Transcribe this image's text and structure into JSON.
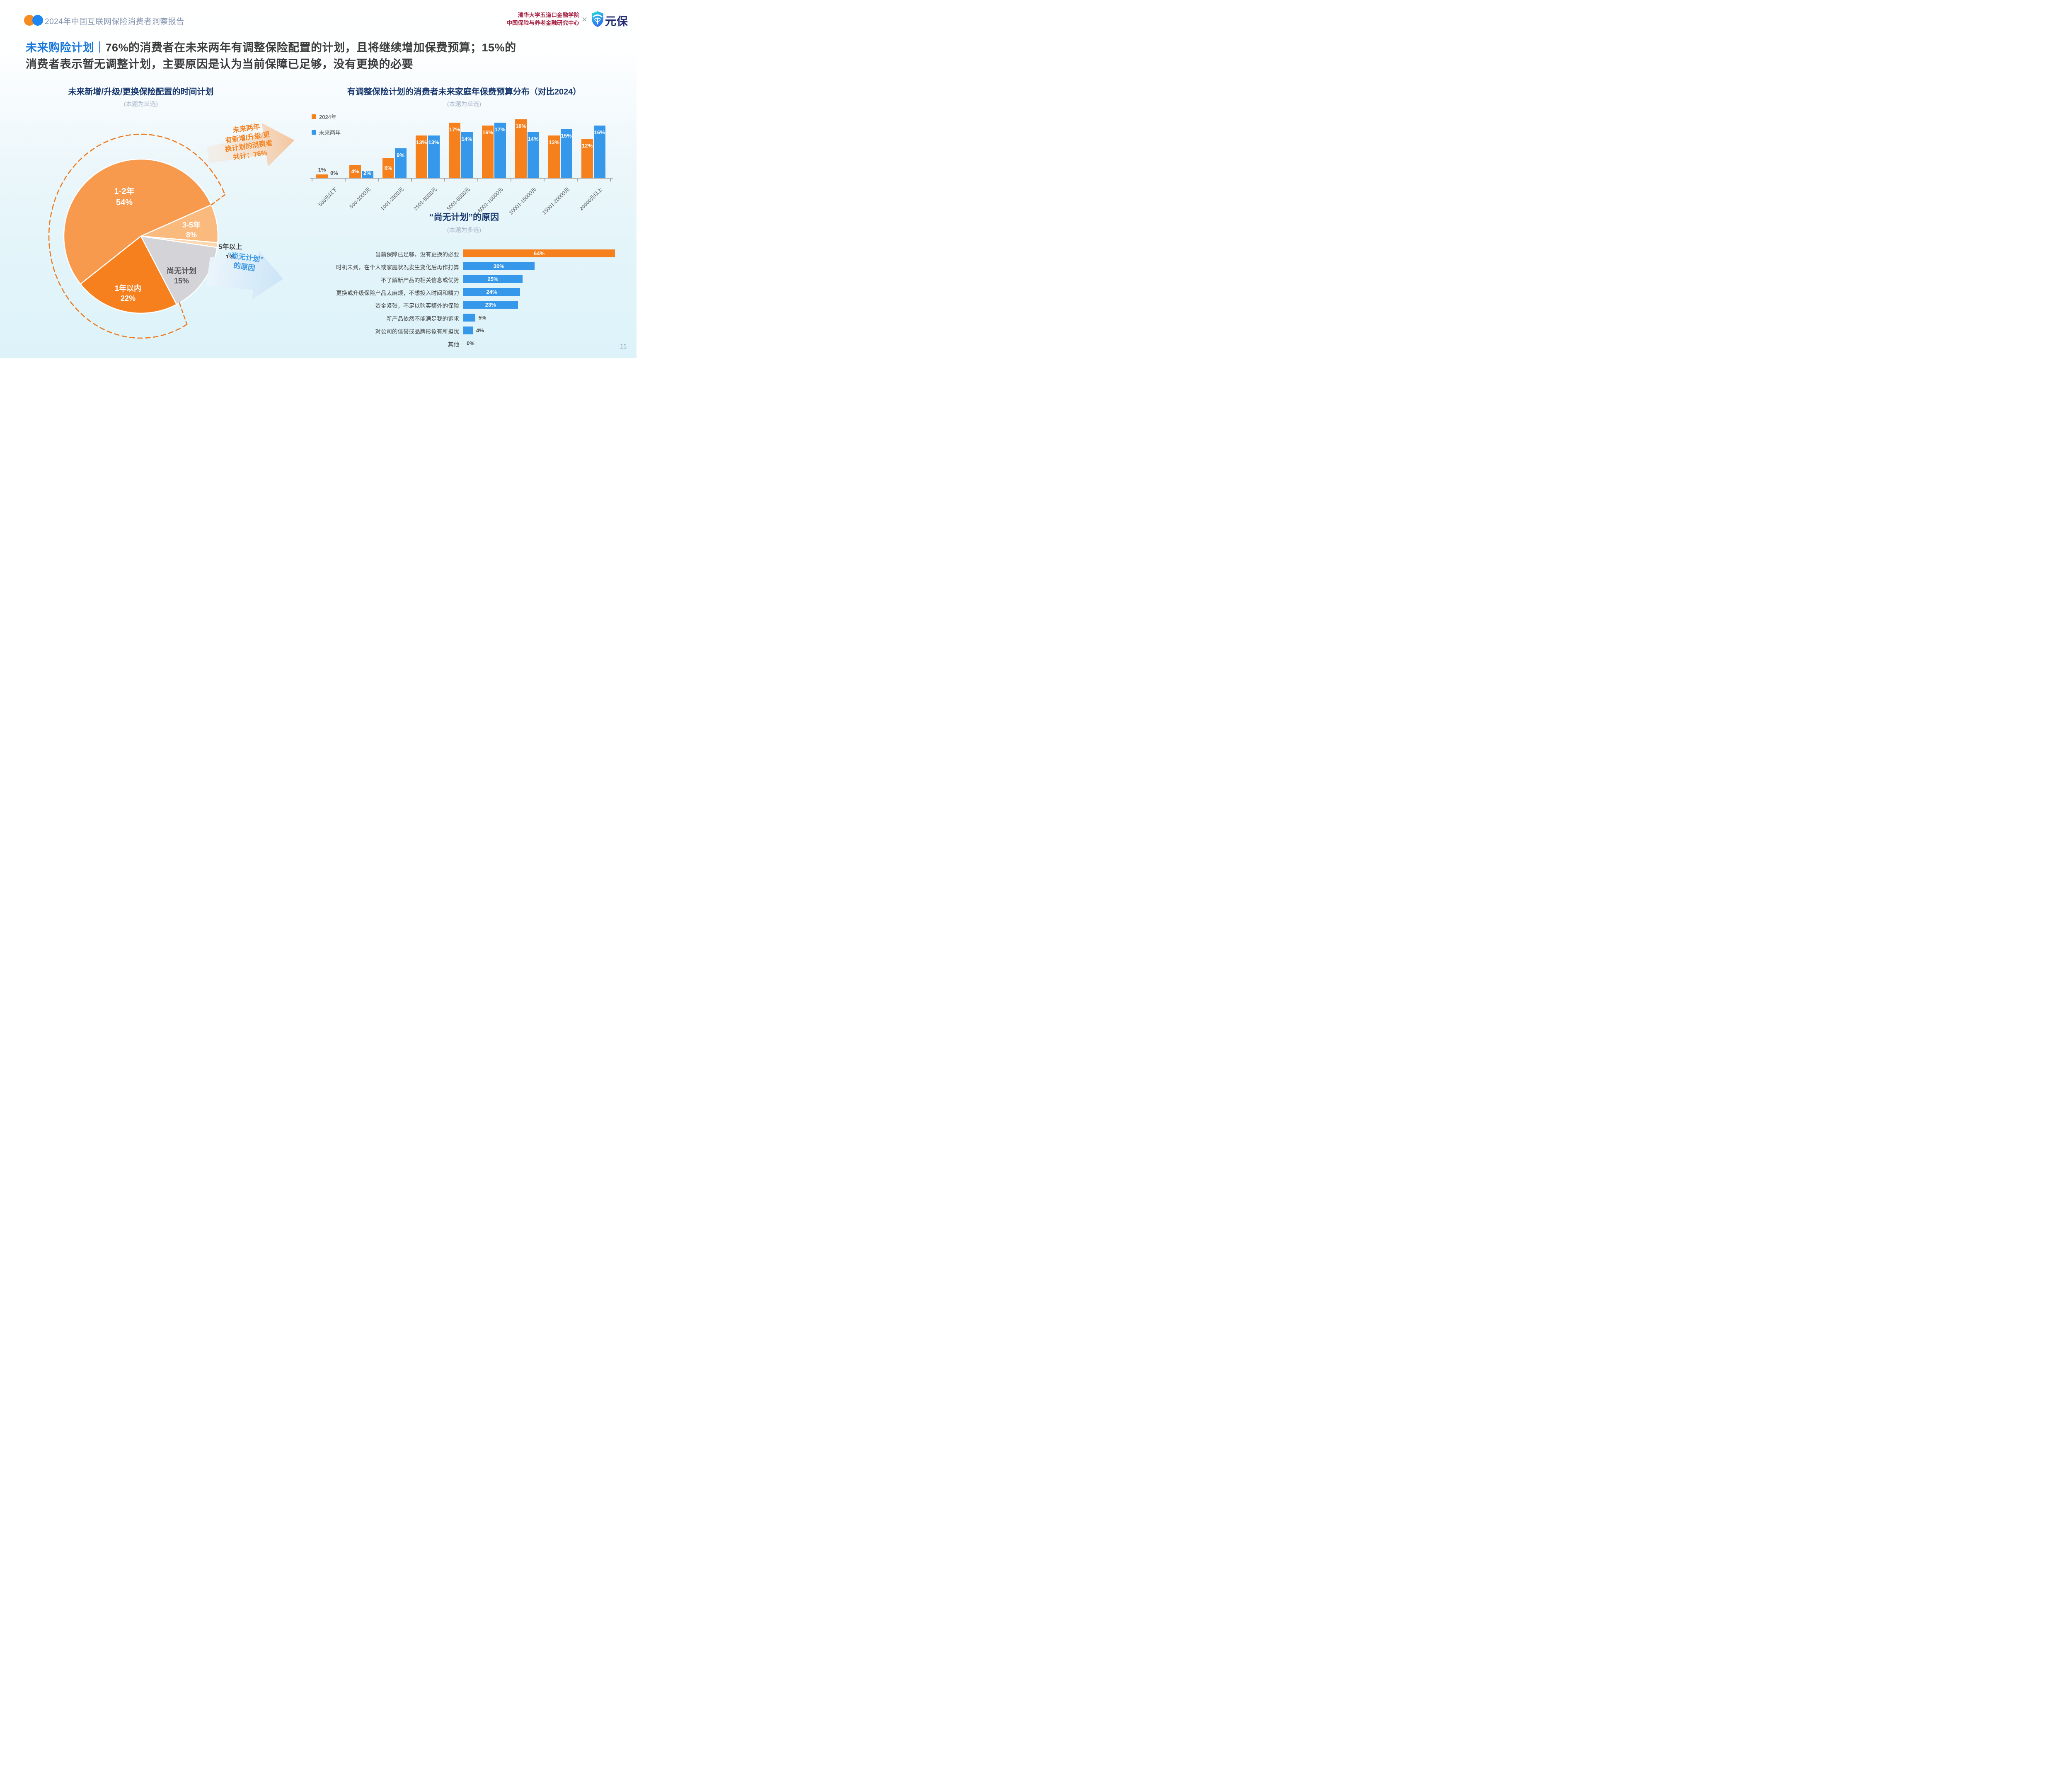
{
  "header": {
    "logo_dot_orange": "#F68B1F",
    "logo_dot_blue": "#1E86F0",
    "report_title": "2024年中国互联网保险消费者洞察报告",
    "institute_line1": "清华大学五道口金融学院",
    "institute_line2": "中国保险与养老金融研究中心",
    "cross": "×",
    "brand_name": "元保"
  },
  "headline": {
    "highlight": "未来购险计划",
    "separator": "｜",
    "line1_rest": "76%的消费者在未来两年有调整保险配置的计划，且将继续增加保费预算；15%的",
    "line2": "消费者表示暂无调整计划，主要原因是认为当前保障已足够，没有更换的必要"
  },
  "page_number": "11",
  "chart_data": [
    {
      "type": "pie",
      "title": "未来新增/升级/更换保险配置的时间计划",
      "subtitle": "(本题为单选)",
      "start_angle_deg_from_north": 231.6,
      "slices": [
        {
          "label": "1-2年",
          "value": 54,
          "value_label": "54%",
          "color": "#F89A4E"
        },
        {
          "label": "3-5年",
          "value": 8,
          "value_label": "8%",
          "color": "#FAB97D"
        },
        {
          "label": "5年以上",
          "value": 1,
          "value_label": "1%",
          "color": "#FCD7AE"
        },
        {
          "label": "尚无计划",
          "value": 15,
          "value_label": "15%",
          "color": "#D4D4D8"
        },
        {
          "label": "1年以内",
          "value": 22,
          "value_label": "22%",
          "color": "#F6801E"
        }
      ],
      "annotations": {
        "plan_lines": [
          "未来两年",
          "有新增/升级/更",
          "换计划的消费者",
          "共计：76%"
        ],
        "plan_color": "#F5821F",
        "noplan_lines": [
          "“尚无计划”",
          "的原因"
        ],
        "noplan_color": "#3B97E4"
      }
    },
    {
      "type": "bar",
      "title": "有调整保险计划的消费者未来家庭年保费预算分布（对比2024）",
      "subtitle": "(本题为单选)",
      "legend_position": "top-left",
      "grid": false,
      "ylim": [
        0,
        18
      ],
      "categories": [
        "500元以下",
        "500-1000元",
        "1001-2500元",
        "2501-5000元",
        "5001-8000元",
        "8001-10000元",
        "10001-15000元",
        "15001-20000元",
        "20000元以上"
      ],
      "series": [
        {
          "name": "2024年",
          "color": "#F5801C",
          "values": [
            1,
            4,
            6,
            13,
            17,
            16,
            18,
            13,
            12
          ],
          "value_labels": [
            "1%",
            "4%",
            "6%",
            "13%",
            "17%",
            "16%",
            "18%",
            "13%",
            "12%"
          ]
        },
        {
          "name": "未来两年",
          "color": "#3698EB",
          "values": [
            0,
            2,
            9,
            13,
            14,
            17,
            14,
            15,
            16
          ],
          "value_labels": [
            "0%",
            "2%",
            "9%",
            "13%",
            "14%",
            "17%",
            "14%",
            "15%",
            "16%"
          ]
        }
      ]
    },
    {
      "type": "bar",
      "orientation": "horizontal",
      "title": "“尚无计划”的原因",
      "subtitle": "(本题为多选)",
      "items": [
        {
          "label": "当前保障已足够，没有更换的必要",
          "value": 64,
          "value_label": "64%",
          "color": "#F5801C"
        },
        {
          "label": "时机未到，在个人或家庭状况发生变化后再作打算",
          "value": 30,
          "value_label": "30%",
          "color": "#3698EB"
        },
        {
          "label": "不了解新产品的相关信息或优势",
          "value": 25,
          "value_label": "25%",
          "color": "#3698EB"
        },
        {
          "label": "更换或升级保险产品太麻烦，不想投入时间和精力",
          "value": 24,
          "value_label": "24%",
          "color": "#3698EB"
        },
        {
          "label": "资金紧张，不足以购买额外的保险",
          "value": 23,
          "value_label": "23%",
          "color": "#3698EB"
        },
        {
          "label": "新产品依然不能满足我的诉求",
          "value": 5,
          "value_label": "5%",
          "color": "#3698EB"
        },
        {
          "label": "对公司的信誉或品牌形象有所担忧",
          "value": 4,
          "value_label": "4%",
          "color": "#3698EB"
        },
        {
          "label": "其他",
          "value": 0,
          "value_label": "0%",
          "color": "#3698EB"
        }
      ]
    }
  ]
}
